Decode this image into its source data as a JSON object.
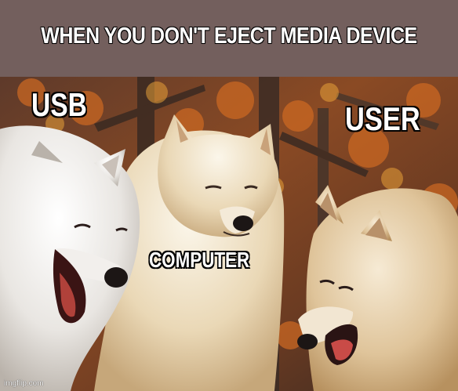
{
  "meme": {
    "caption": "WHEN YOU DON'T EJECT MEDIA DEVICE",
    "labels": {
      "left_wolf": "USB",
      "middle_wolf": "COMPUTER",
      "right_wolf": "USER"
    },
    "watermark": "imgflip.com"
  }
}
